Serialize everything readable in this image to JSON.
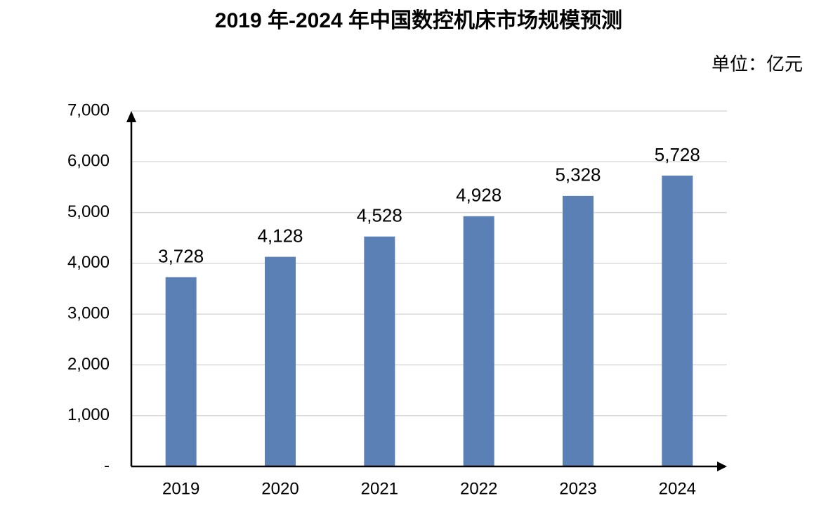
{
  "chart_data": {
    "type": "bar",
    "title": "2019 年-2024 年中国数控机床市场规模预测",
    "unit": "单位：亿元",
    "categories": [
      "2019",
      "2020",
      "2021",
      "2022",
      "2023",
      "2024"
    ],
    "values": [
      3728,
      4128,
      4528,
      4928,
      5328,
      5728
    ],
    "value_labels": [
      "3,728",
      "4,128",
      "4,528",
      "4,928",
      "5,328",
      "5,728"
    ],
    "color": "#5b80b5",
    "ylim": [
      0,
      7000
    ],
    "yticks": [
      {
        "value": 0,
        "label": "-"
      },
      {
        "value": 1000,
        "label": "1,000"
      },
      {
        "value": 2000,
        "label": "2,000"
      },
      {
        "value": 3000,
        "label": "3,000"
      },
      {
        "value": 4000,
        "label": "4,000"
      },
      {
        "value": 5000,
        "label": "5,000"
      },
      {
        "value": 6000,
        "label": "6,000"
      },
      {
        "value": 7000,
        "label": "7,000"
      }
    ],
    "grid": true
  }
}
